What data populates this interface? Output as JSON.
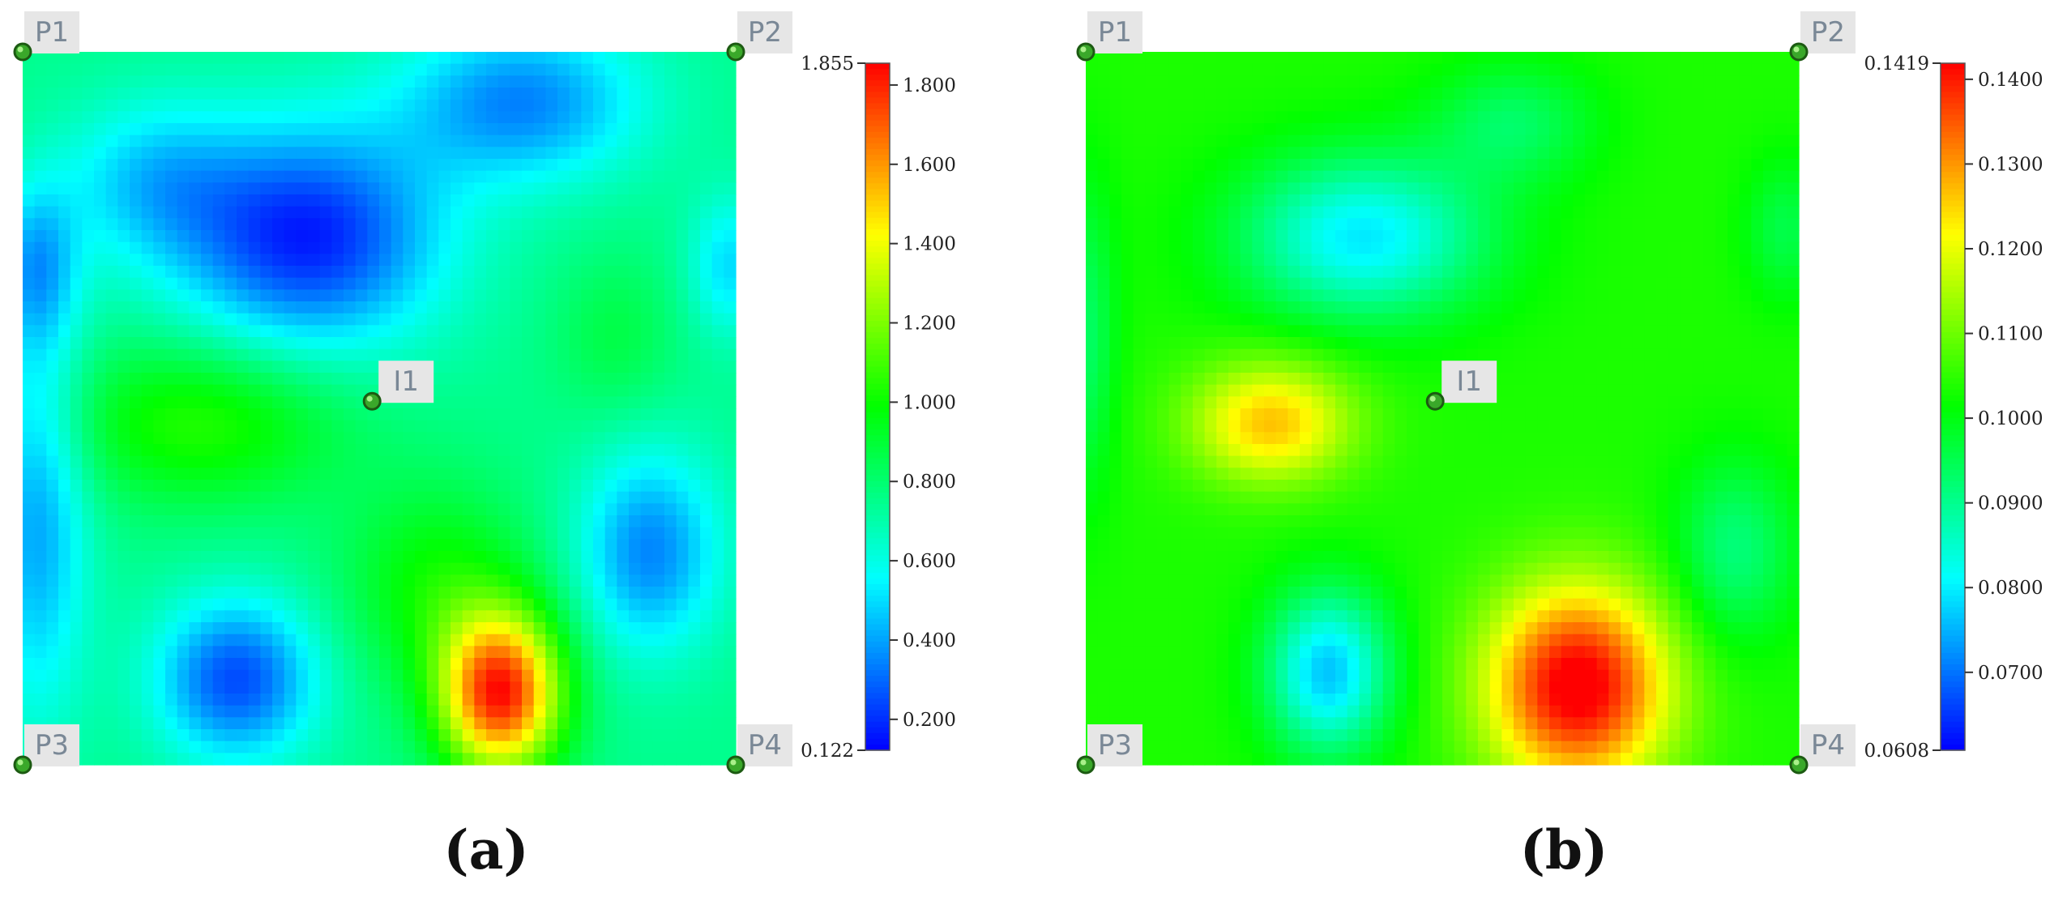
{
  "chart_data": [
    {
      "type": "heatmap",
      "panel_label": "(a)",
      "points": [
        {
          "label": "P1",
          "x": 0,
          "y": 0
        },
        {
          "label": "P2",
          "x": 1,
          "y": 0
        },
        {
          "label": "I1",
          "x": 0.49,
          "y": 0.49
        },
        {
          "label": "P3",
          "x": 0,
          "y": 1
        },
        {
          "label": "P4",
          "x": 1,
          "y": 1
        }
      ],
      "colorbar": {
        "min": 0.122,
        "max": 1.855,
        "min_label": "0.122",
        "max_label": "1.855",
        "ticks": [
          {
            "value": 0.2,
            "label": "0.200"
          },
          {
            "value": 0.4,
            "label": "0.400"
          },
          {
            "value": 0.6,
            "label": "0.600"
          },
          {
            "value": 0.8,
            "label": "0.800"
          },
          {
            "value": 1.0,
            "label": "1.000"
          },
          {
            "value": 1.2,
            "label": "1.200"
          },
          {
            "value": 1.4,
            "label": "1.400"
          },
          {
            "value": 1.6,
            "label": "1.600"
          },
          {
            "value": 1.8,
            "label": "1.800"
          }
        ],
        "colormap": [
          "#0000ff",
          "#00ffff",
          "#00ff00",
          "#ffff00",
          "#ff0000"
        ]
      },
      "base_value": 0.75,
      "features": [
        {
          "cx": 0.4,
          "cy": 0.26,
          "sx": 0.13,
          "sy": 0.11,
          "amp": -0.58
        },
        {
          "cx": 0.18,
          "cy": 0.18,
          "sx": 0.09,
          "sy": 0.08,
          "amp": -0.25
        },
        {
          "cx": 0.7,
          "cy": 0.07,
          "sx": 0.12,
          "sy": 0.08,
          "amp": -0.4
        },
        {
          "cx": 0.3,
          "cy": 0.88,
          "sx": 0.08,
          "sy": 0.08,
          "amp": -0.5
        },
        {
          "cx": 0.88,
          "cy": 0.7,
          "sx": 0.07,
          "sy": 0.1,
          "amp": -0.4
        },
        {
          "cx": 0.02,
          "cy": 0.65,
          "sx": 0.05,
          "sy": 0.2,
          "amp": -0.35
        },
        {
          "cx": 0.02,
          "cy": 0.3,
          "sx": 0.04,
          "sy": 0.08,
          "amp": -0.3
        },
        {
          "cx": 0.99,
          "cy": 0.3,
          "sx": 0.04,
          "sy": 0.07,
          "amp": -0.25
        },
        {
          "cx": 0.25,
          "cy": 0.52,
          "sx": 0.14,
          "sy": 0.08,
          "amp": 0.3
        },
        {
          "cx": 0.58,
          "cy": 0.75,
          "sx": 0.09,
          "sy": 0.1,
          "amp": 0.25
        },
        {
          "cx": 0.83,
          "cy": 0.4,
          "sx": 0.06,
          "sy": 0.08,
          "amp": 0.12
        },
        {
          "cx": 0.67,
          "cy": 0.9,
          "sx": 0.06,
          "sy": 0.08,
          "amp": 1.05
        }
      ]
    },
    {
      "type": "heatmap",
      "panel_label": "(b)",
      "points": [
        {
          "label": "P1",
          "x": 0,
          "y": 0
        },
        {
          "label": "P2",
          "x": 1,
          "y": 0
        },
        {
          "label": "I1",
          "x": 0.49,
          "y": 0.49
        },
        {
          "label": "P3",
          "x": 0,
          "y": 1
        },
        {
          "label": "P4",
          "x": 1,
          "y": 1
        }
      ],
      "colorbar": {
        "min": 0.0608,
        "max": 0.1419,
        "min_label": "0.0608",
        "max_label": "0.1419",
        "ticks": [
          {
            "value": 0.07,
            "label": "0.0700"
          },
          {
            "value": 0.08,
            "label": "0.0800"
          },
          {
            "value": 0.09,
            "label": "0.0900"
          },
          {
            "value": 0.1,
            "label": "0.1000"
          },
          {
            "value": 0.11,
            "label": "0.1100"
          },
          {
            "value": 0.12,
            "label": "0.1200"
          },
          {
            "value": 0.13,
            "label": "0.1300"
          },
          {
            "value": 0.14,
            "label": "0.1400"
          }
        ],
        "colormap": [
          "#0000ff",
          "#00ffff",
          "#00ff00",
          "#ffff00",
          "#ff0000"
        ]
      },
      "base_value": 0.1035,
      "features": [
        {
          "cx": 0.39,
          "cy": 0.26,
          "sx": 0.12,
          "sy": 0.08,
          "amp": -0.024
        },
        {
          "cx": 0.6,
          "cy": 0.1,
          "sx": 0.08,
          "sy": 0.06,
          "amp": -0.01
        },
        {
          "cx": 0.34,
          "cy": 0.87,
          "sx": 0.06,
          "sy": 0.08,
          "amp": -0.027
        },
        {
          "cx": 0.91,
          "cy": 0.7,
          "sx": 0.06,
          "sy": 0.09,
          "amp": -0.012
        },
        {
          "cx": 0.0,
          "cy": 0.4,
          "sx": 0.03,
          "sy": 0.15,
          "amp": -0.01
        },
        {
          "cx": 0.98,
          "cy": 0.25,
          "sx": 0.04,
          "sy": 0.07,
          "amp": -0.008
        },
        {
          "cx": 0.26,
          "cy": 0.52,
          "sx": 0.08,
          "sy": 0.06,
          "amp": 0.023
        },
        {
          "cx": 0.69,
          "cy": 0.89,
          "sx": 0.09,
          "sy": 0.1,
          "amp": 0.041
        }
      ]
    }
  ]
}
